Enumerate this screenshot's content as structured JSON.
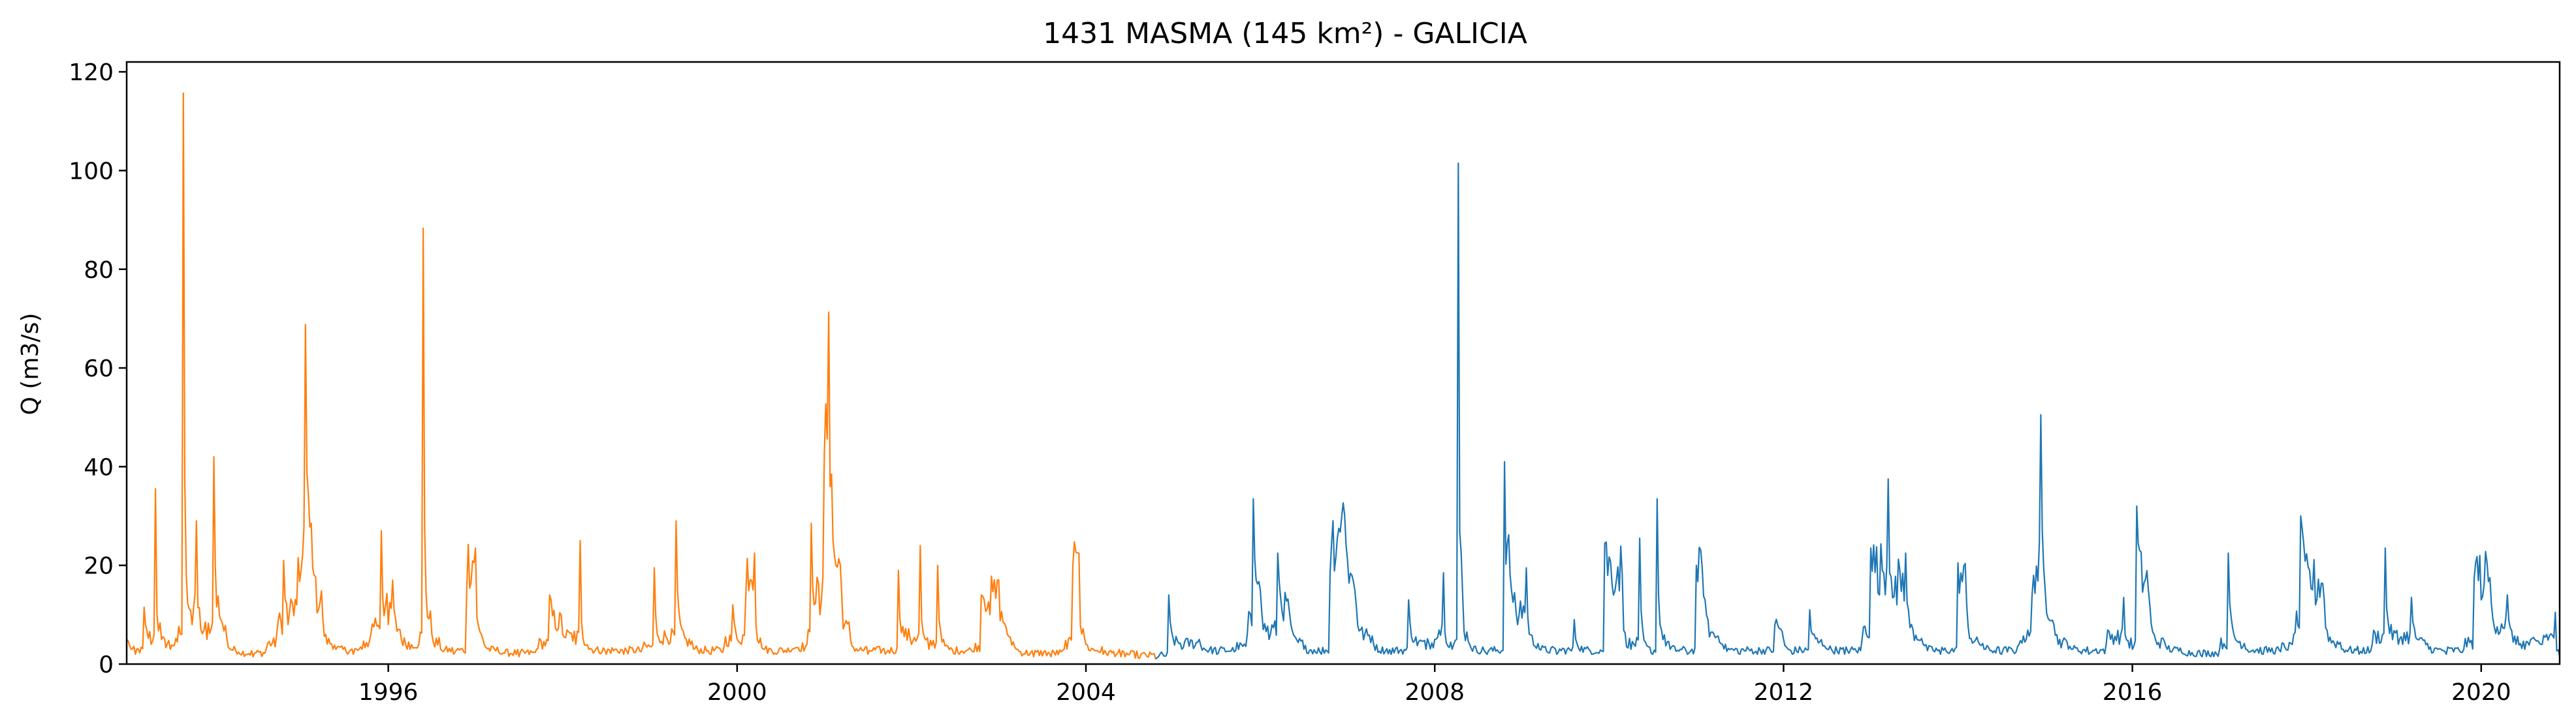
{
  "chart_data": {
    "type": "line",
    "title": "1431 MASMA (145 km²) - GALICIA",
    "xlabel": "",
    "ylabel": "Q (m3/s)",
    "xlim": [
      1993.0,
      2020.9
    ],
    "ylim": [
      0,
      122
    ],
    "x_ticks": [
      1996,
      2000,
      2004,
      2008,
      2012,
      2016,
      2020
    ],
    "y_ticks": [
      0,
      20,
      40,
      60,
      80,
      100,
      120
    ],
    "grid": false,
    "legend": "none",
    "series": [
      {
        "color": "#ff7f0e",
        "x_range": [
          1993.0,
          2004.8
        ],
        "x": [
          1993.0,
          1993.05,
          1993.1,
          1993.2,
          1993.28,
          1993.33,
          1993.4,
          1993.5,
          1993.58,
          1993.65,
          1993.75,
          1993.8,
          1993.85,
          1993.92,
          1994.0,
          1994.08,
          1994.15,
          1994.3,
          1994.45,
          1994.6,
          1994.72,
          1994.8,
          1994.85,
          1994.95,
          1995.0,
          1995.05,
          1995.15,
          1995.25,
          1995.4,
          1995.6,
          1995.7,
          1995.8,
          1995.92,
          1996.0,
          1996.05,
          1996.15,
          1996.25,
          1996.35,
          1996.4,
          1996.5,
          1996.6,
          1996.75,
          1996.9,
          1997.0,
          1997.1,
          1997.3,
          1997.5,
          1997.7,
          1997.85,
          1998.0,
          1998.15,
          1998.2,
          1998.3,
          1998.5,
          1998.7,
          1998.9,
          1999.05,
          1999.15,
          1999.3,
          1999.5,
          1999.7,
          1999.85,
          1999.95,
          2000.05,
          2000.1,
          2000.2,
          2000.3,
          2000.45,
          2000.6,
          2000.8,
          2000.85,
          2000.95,
          2001.0,
          2001.05,
          2001.1,
          2001.2,
          2001.3,
          2001.5,
          2001.7,
          2001.85,
          2002.0,
          2002.1,
          2002.2,
          2002.3,
          2002.5,
          2002.7,
          2002.8,
          2002.9,
          2003.0,
          2003.1,
          2003.2,
          2003.4,
          2003.6,
          2003.75,
          2003.85,
          2003.92,
          2004.0,
          2004.2,
          2004.4,
          2004.6,
          2004.8
        ],
        "y": [
          5.0,
          3.0,
          2.0,
          11.5,
          4.0,
          35.5,
          5.0,
          3.0,
          4.5,
          115.7,
          8.0,
          29.0,
          7.0,
          5.0,
          42.0,
          9.0,
          5.0,
          2.0,
          1.5,
          3.0,
          6.0,
          21.0,
          8.0,
          12.0,
          19.0,
          68.8,
          18.0,
          9.0,
          3.0,
          2.0,
          3.0,
          6.0,
          27.0,
          8.0,
          17.0,
          5.0,
          3.0,
          4.0,
          88.3,
          6.0,
          3.0,
          2.0,
          15.0,
          23.5,
          4.0,
          2.0,
          1.5,
          3.0,
          14.0,
          6.0,
          4.0,
          25.0,
          3.0,
          2.0,
          2.0,
          2.5,
          19.5,
          4.0,
          29.0,
          3.0,
          2.0,
          3.5,
          12.0,
          4.0,
          14.0,
          22.5,
          3.0,
          2.0,
          2.5,
          4.0,
          28.5,
          10.0,
          42.5,
          71.3,
          25.0,
          14.0,
          5.0,
          2.0,
          2.0,
          19.0,
          4.0,
          24.0,
          3.0,
          20.0,
          2.0,
          2.5,
          14.0,
          10.0,
          17.0,
          6.0,
          3.0,
          1.5,
          1.5,
          3.0,
          20.0,
          22.5,
          4.0,
          2.0,
          1.5,
          1.2,
          1.0
        ]
      },
      {
        "color": "#1f77b4",
        "x_range": [
          2004.8,
          2020.9
        ],
        "x": [
          2004.8,
          2004.95,
          2005.1,
          2005.3,
          2005.5,
          2005.7,
          2005.85,
          2005.92,
          2006.0,
          2006.1,
          2006.2,
          2006.35,
          2006.5,
          2006.7,
          2006.8,
          2006.9,
          2007.0,
          2007.1,
          2007.3,
          2007.5,
          2007.7,
          2007.9,
          2008.0,
          2008.1,
          2008.2,
          2008.27,
          2008.32,
          2008.4,
          2008.6,
          2008.8,
          2008.88,
          2008.95,
          2009.05,
          2009.2,
          2009.4,
          2009.6,
          2009.8,
          2009.95,
          2010.05,
          2010.15,
          2010.25,
          2010.35,
          2010.5,
          2010.55,
          2010.7,
          2010.9,
          2011.0,
          2011.1,
          2011.3,
          2011.5,
          2011.7,
          2011.9,
          2012.0,
          2012.1,
          2012.3,
          2012.5,
          2012.7,
          2012.9,
          2013.0,
          2013.1,
          2013.2,
          2013.3,
          2013.4,
          2013.6,
          2013.8,
          2014.0,
          2014.1,
          2014.3,
          2014.5,
          2014.7,
          2014.85,
          2014.95,
          2015.1,
          2015.3,
          2015.5,
          2015.7,
          2015.9,
          2016.0,
          2016.05,
          2016.2,
          2016.4,
          2016.6,
          2016.8,
          2017.0,
          2017.1,
          2017.3,
          2017.5,
          2017.7,
          2017.85,
          2017.93,
          2018.1,
          2018.2,
          2018.4,
          2018.6,
          2018.75,
          2018.9,
          2019.05,
          2019.2,
          2019.4,
          2019.6,
          2019.8,
          2019.92,
          2020.0,
          2020.1,
          2020.2,
          2020.3,
          2020.4,
          2020.5,
          2020.7,
          2020.85,
          2020.9
        ],
        "y": [
          1.0,
          14.0,
          3.0,
          5.0,
          2.0,
          2.5,
          6.0,
          33.5,
          15.0,
          5.0,
          22.5,
          8.0,
          3.0,
          2.0,
          18.5,
          27.5,
          21.0,
          12.0,
          4.0,
          2.0,
          13.0,
          3.0,
          5.0,
          18.5,
          3.0,
          101.5,
          14.0,
          4.0,
          2.0,
          41.0,
          15.0,
          8.0,
          19.5,
          3.0,
          2.0,
          9.0,
          2.0,
          24.5,
          14.0,
          18.0,
          3.0,
          25.5,
          2.0,
          33.5,
          3.0,
          2.0,
          20.0,
          13.0,
          4.0,
          2.0,
          2.0,
          8.0,
          5.0,
          2.0,
          11.0,
          3.0,
          2.0,
          5.0,
          23.5,
          14.0,
          37.5,
          12.0,
          22.5,
          4.0,
          2.0,
          20.5,
          12.0,
          3.0,
          2.0,
          4.0,
          14.0,
          50.5,
          8.0,
          3.0,
          2.0,
          4.0,
          13.5,
          3.0,
          32.0,
          12.0,
          3.0,
          2.0,
          1.5,
          3.0,
          22.5,
          3.0,
          2.0,
          2.5,
          6.0,
          30.0,
          12.0,
          13.0,
          3.0,
          2.0,
          4.0,
          23.5,
          4.0,
          13.5,
          3.0,
          2.0,
          3.0,
          17.5,
          13.0,
          17.5,
          6.0,
          14.0,
          4.0,
          3.0,
          4.0,
          10.5,
          1.5
        ]
      }
    ]
  }
}
